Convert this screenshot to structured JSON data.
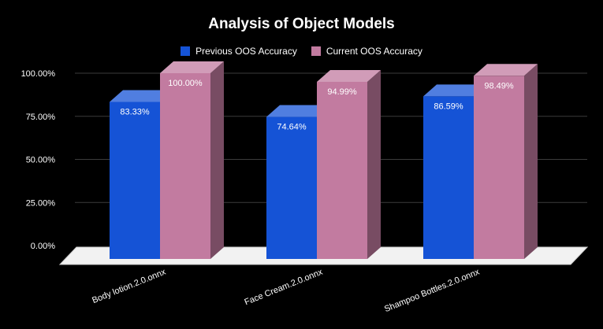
{
  "chart_data": {
    "type": "bar",
    "title": "Analysis of Object Models",
    "categories": [
      "Body lotion.2.0.onnx",
      "Face Cream.2.0.onnx",
      "Shampoo Bottles.2.0.onnx"
    ],
    "series": [
      {
        "name": "Previous OOS Accuracy",
        "values": [
          83.33,
          74.64,
          86.59
        ],
        "labels": [
          "83.33%",
          "74.64%",
          "86.59%"
        ],
        "color": "#1553d6"
      },
      {
        "name": "Current OOS Accuracy",
        "values": [
          100.0,
          94.99,
          98.49
        ],
        "labels": [
          "100.00%",
          "94.99%",
          "98.49%"
        ],
        "color": "#c27ba0"
      }
    ],
    "yticks": [
      "0.00%",
      "25.00%",
      "50.00%",
      "75.00%",
      "100.00%"
    ],
    "ylim": [
      0,
      100
    ],
    "grid": true,
    "legend_position": "top",
    "three_d": true
  }
}
